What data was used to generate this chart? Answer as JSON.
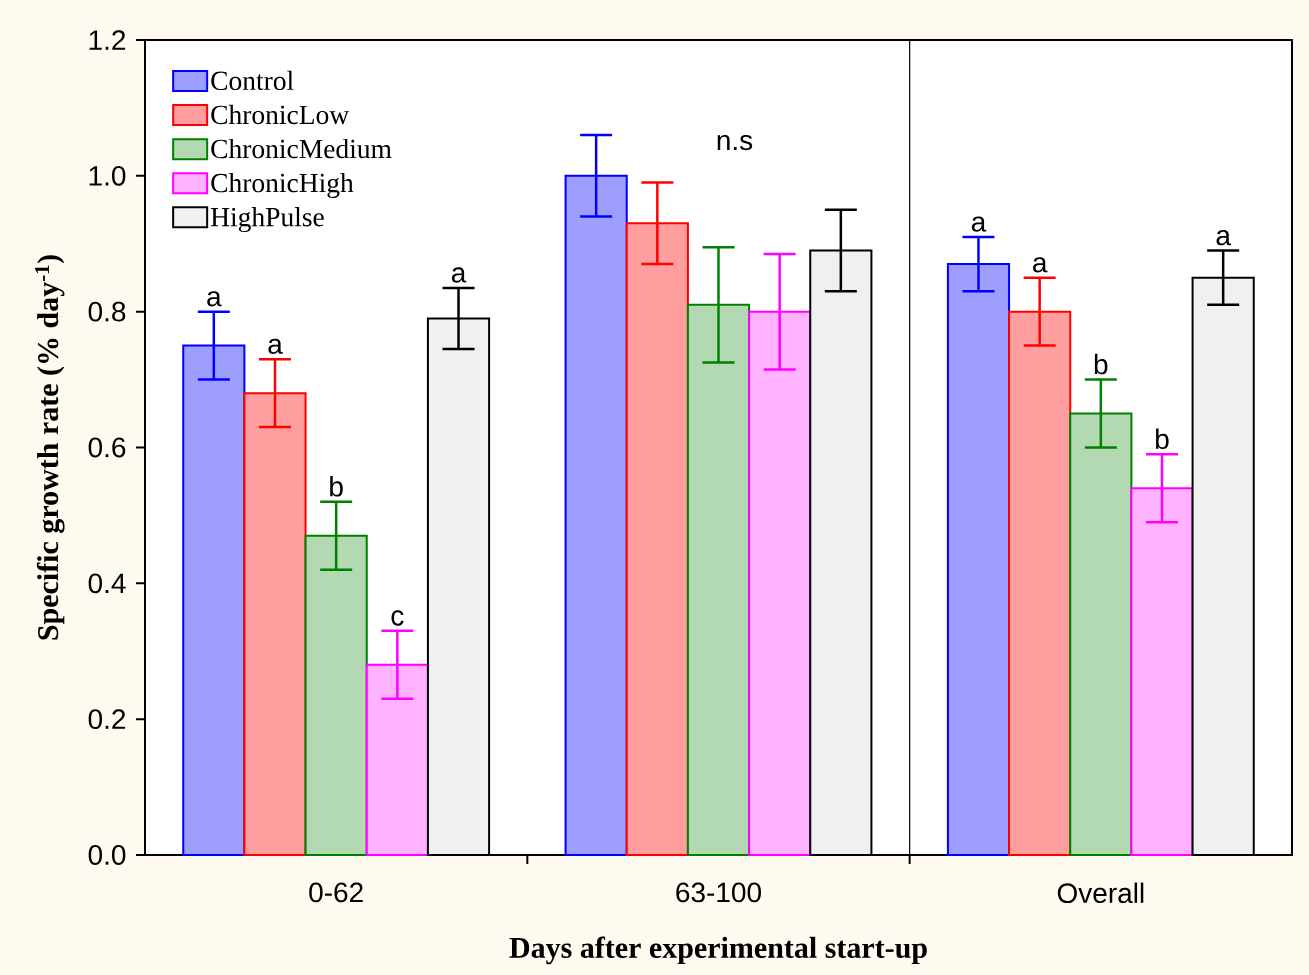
{
  "chart_data": {
    "type": "bar",
    "xlabel": "Days after experimental start-up",
    "ylabel": "Specific growth rate (% day$^{-1}$)",
    "categories": [
      "0-62",
      "63-100",
      "Overall"
    ],
    "series": [
      {
        "name": "Control",
        "color": "#0000ff",
        "values": [
          0.75,
          1.0,
          0.87
        ],
        "errors": [
          0.05,
          0.06,
          0.04
        ],
        "value_labels": [
          "a",
          null,
          "a"
        ]
      },
      {
        "name": "ChronicLow",
        "color": "#ff0000",
        "values": [
          0.68,
          0.93,
          0.8
        ],
        "errors": [
          0.05,
          0.06,
          0.05
        ],
        "value_labels": [
          "a",
          null,
          "a"
        ]
      },
      {
        "name": "ChronicMedium",
        "color": "#008000",
        "values": [
          0.47,
          0.81,
          0.65
        ],
        "errors": [
          0.05,
          0.085,
          0.05
        ],
        "value_labels": [
          "b",
          null,
          "b"
        ]
      },
      {
        "name": "ChronicHigh",
        "color": "#ff00ff",
        "values": [
          0.28,
          0.8,
          0.54
        ],
        "errors": [
          0.05,
          0.085,
          0.05
        ],
        "value_labels": [
          "c",
          null,
          "b"
        ]
      },
      {
        "name": "HighPulse",
        "color": "#000000",
        "values": [
          0.79,
          0.89,
          0.85
        ],
        "errors": [
          0.045,
          0.06,
          0.04
        ],
        "value_labels": [
          "a",
          null,
          "a"
        ]
      }
    ],
    "ylim": [
      0,
      1.2
    ],
    "yticks": [
      {
        "value": 0,
        "label": "0.0"
      },
      0.2,
      0.4,
      0.6,
      0.8,
      {
        "value": 1,
        "label": "1.0"
      },
      1.2
    ],
    "legend": "top left",
    "annotations": [
      "n.s"
    ]
  }
}
